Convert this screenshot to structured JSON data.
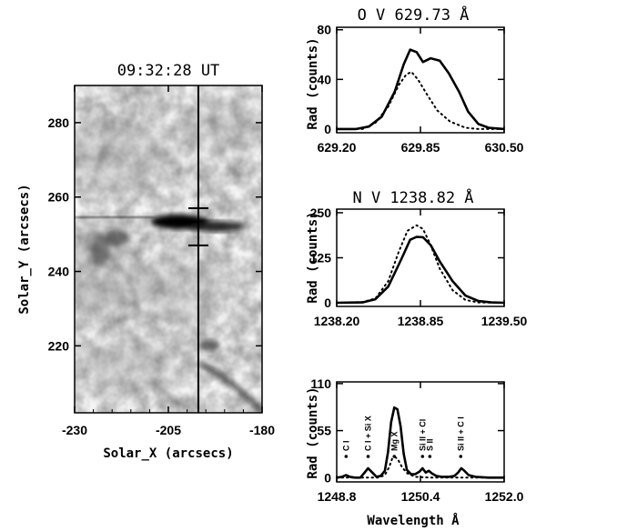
{
  "chart_data": [
    {
      "type": "heatmap",
      "title": "09:32:28 UT",
      "xlabel": "Solar_X (arcsecs)",
      "ylabel": "Solar_Y (arcsecs)",
      "xlim": [
        -230,
        -180
      ],
      "ylim": [
        202,
        290
      ],
      "xticks": [
        -230,
        -205,
        -180
      ],
      "yticks": [
        220,
        240,
        260,
        280
      ],
      "slit_x": -197,
      "slit_marks_y": [
        247,
        257
      ],
      "colormap": "inverted grayscale"
    },
    {
      "type": "line",
      "title": "O V 629.73 Å",
      "ylabel": "Rad (counts)",
      "xlim": [
        629.2,
        630.5
      ],
      "ylim": [
        -3,
        82
      ],
      "xticks": [
        629.2,
        629.85,
        630.5
      ],
      "xtick_labels": [
        "629.20",
        "629.85",
        "630.50"
      ],
      "yticks": [
        0,
        40,
        80
      ],
      "series": [
        {
          "style": "solid",
          "x": [
            629.2,
            629.35,
            629.45,
            629.55,
            629.65,
            629.72,
            629.77,
            629.82,
            629.87,
            629.93,
            630.0,
            630.07,
            630.15,
            630.22,
            630.3,
            630.38,
            630.5
          ],
          "values": [
            0,
            0,
            2,
            10,
            30,
            52,
            64,
            62,
            54,
            57,
            55,
            45,
            30,
            14,
            4,
            1,
            0
          ]
        },
        {
          "style": "dotted",
          "x": [
            629.2,
            629.4,
            629.5,
            629.6,
            629.68,
            629.74,
            629.78,
            629.83,
            629.9,
            629.98,
            630.08,
            630.2,
            630.3,
            630.5
          ],
          "values": [
            0,
            0,
            5,
            18,
            35,
            44,
            46,
            40,
            28,
            15,
            6,
            1,
            0,
            0
          ]
        }
      ]
    },
    {
      "type": "line",
      "title": "N V 1238.82 Å",
      "ylabel": "Rad (counts)",
      "xlim": [
        1238.2,
        1239.5
      ],
      "ylim": [
        -10,
        260
      ],
      "xticks": [
        1238.2,
        1238.85,
        1239.5
      ],
      "xtick_labels": [
        "1238.20",
        "1238.85",
        "1239.50"
      ],
      "yticks": [
        0,
        125,
        250
      ],
      "series": [
        {
          "style": "solid",
          "x": [
            1238.2,
            1238.4,
            1238.5,
            1238.6,
            1238.7,
            1238.77,
            1238.82,
            1238.87,
            1238.93,
            1239.0,
            1239.1,
            1239.2,
            1239.3,
            1239.4,
            1239.5
          ],
          "values": [
            0,
            1,
            10,
            45,
            120,
            175,
            183,
            182,
            160,
            115,
            60,
            20,
            5,
            1,
            0
          ]
        },
        {
          "style": "dotted",
          "x": [
            1238.2,
            1238.4,
            1238.5,
            1238.6,
            1238.68,
            1238.75,
            1238.82,
            1238.87,
            1238.93,
            1239.0,
            1239.1,
            1239.2,
            1239.3,
            1239.5
          ],
          "values": [
            0,
            2,
            12,
            60,
            140,
            200,
            215,
            205,
            160,
            95,
            35,
            8,
            1,
            0
          ]
        }
      ]
    },
    {
      "type": "line",
      "xlabel": "Wavelength Å",
      "ylabel": "Rad (counts)",
      "xlim": [
        1248.8,
        1252.0
      ],
      "ylim": [
        -5,
        112
      ],
      "xticks": [
        1248.8,
        1250.4,
        1252.0
      ],
      "xtick_labels": [
        "1248.8",
        "1250.4",
        "1252.0"
      ],
      "yticks": [
        0,
        55,
        110
      ],
      "annotations": [
        {
          "text": "C I",
          "x": 1248.98
        },
        {
          "text": "C I + Si X",
          "x": 1249.4
        },
        {
          "text": "Mg X",
          "x": 1249.9
        },
        {
          "text": "Si II + Cl",
          "x": 1250.44
        },
        {
          "text": "S II",
          "x": 1250.58
        },
        {
          "text": "Si II + C I",
          "x": 1251.17
        }
      ],
      "series": [
        {
          "style": "solid",
          "x": [
            1248.8,
            1248.9,
            1248.98,
            1249.05,
            1249.15,
            1249.25,
            1249.32,
            1249.4,
            1249.48,
            1249.56,
            1249.64,
            1249.72,
            1249.78,
            1249.84,
            1249.9,
            1249.96,
            1250.02,
            1250.08,
            1250.14,
            1250.22,
            1250.3,
            1250.38,
            1250.44,
            1250.5,
            1250.56,
            1250.62,
            1250.7,
            1250.8,
            1250.95,
            1251.05,
            1251.12,
            1251.18,
            1251.24,
            1251.32,
            1251.45,
            1251.7,
            1252.0
          ],
          "values": [
            0,
            1,
            3,
            1,
            0,
            0,
            5,
            11,
            6,
            1,
            2,
            8,
            30,
            65,
            82,
            80,
            60,
            28,
            9,
            4,
            4,
            7,
            11,
            6,
            8,
            5,
            2,
            1,
            1,
            2,
            6,
            11,
            8,
            3,
            1,
            0,
            0
          ]
        },
        {
          "style": "dotted",
          "x": [
            1248.8,
            1249.3,
            1249.6,
            1249.72,
            1249.8,
            1249.86,
            1249.92,
            1249.98,
            1250.05,
            1250.15,
            1250.3,
            1250.6,
            1251.0,
            1252.0
          ],
          "values": [
            0,
            0,
            0,
            3,
            12,
            22,
            24,
            20,
            12,
            5,
            1,
            0,
            0,
            0
          ]
        }
      ]
    }
  ]
}
